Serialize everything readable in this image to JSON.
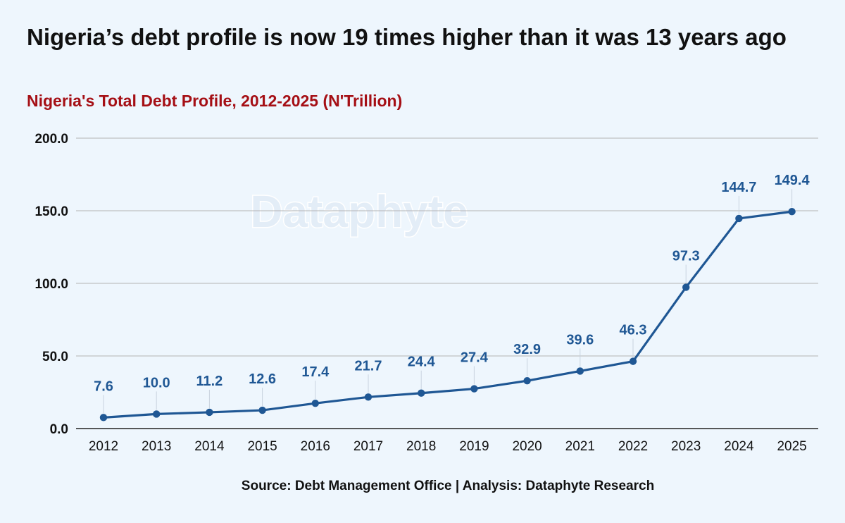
{
  "title": "Nigeria’s debt profile is now 19 times higher than it was 13 years ago",
  "subtitle": "Nigeria's Total Debt Profile, 2012-2025 (N'Trillion)",
  "watermark": "Dataphyte",
  "source": "Source: Debt Management Office | Analysis: Dataphyte Research",
  "colors": {
    "line": "#1f5794",
    "label": "#1f5794",
    "title": "#111111",
    "subtitle": "#a50f15",
    "grid": "#b4b4b4",
    "background": "#eef6fd"
  },
  "chart_data": {
    "type": "line",
    "title": "Nigeria's Total Debt Profile, 2012-2025 (N'Trillion)",
    "xlabel": "",
    "ylabel": "",
    "categories": [
      "2012",
      "2013",
      "2014",
      "2015",
      "2016",
      "2017",
      "2018",
      "2019",
      "2020",
      "2021",
      "2022",
      "2023",
      "2024",
      "2025"
    ],
    "values": [
      7.6,
      10.0,
      11.2,
      12.6,
      17.4,
      21.7,
      24.4,
      27.4,
      32.9,
      39.6,
      46.3,
      97.3,
      144.7,
      149.4
    ],
    "data_labels": [
      "7.6",
      "10.0",
      "11.2",
      "12.6",
      "17.4",
      "21.7",
      "24.4",
      "27.4",
      "32.9",
      "39.6",
      "46.3",
      "97.3",
      "144.7",
      "149.4"
    ],
    "ylim": [
      0,
      200
    ],
    "yticks": [
      0,
      50,
      100,
      150,
      200
    ],
    "ytick_labels": [
      "0.0",
      "50.0",
      "100.0",
      "150.0",
      "200.0"
    ],
    "grid": true,
    "legend": "none"
  }
}
